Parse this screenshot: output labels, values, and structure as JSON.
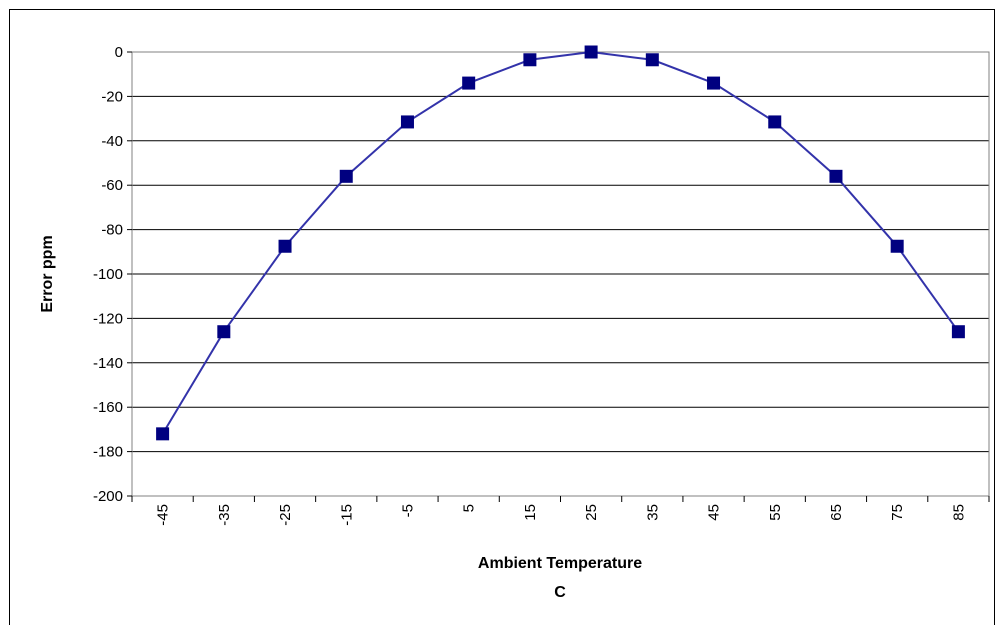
{
  "chart_data": {
    "type": "line",
    "title": "",
    "xlabel_line1": "Ambient Temperature",
    "xlabel_line2": "C",
    "ylabel": "Error ppm",
    "ylim": [
      -200,
      0
    ],
    "yticks": [
      0,
      -20,
      -40,
      -60,
      -80,
      -100,
      -120,
      -140,
      -160,
      -180,
      -200
    ],
    "categories": [
      "-45",
      "-35",
      "-25",
      "-15",
      "-5",
      "5",
      "15",
      "25",
      "35",
      "45",
      "55",
      "65",
      "75",
      "85"
    ],
    "series": [
      {
        "values": [
          -172,
          -126,
          -87.5,
          -56,
          -31.5,
          -14,
          -3.5,
          0,
          -3.5,
          -14,
          -31.5,
          -56,
          -87.5,
          -126
        ]
      }
    ],
    "grid": true,
    "line_color": "#3333aa",
    "marker_color": "#000080",
    "marker": "square"
  }
}
